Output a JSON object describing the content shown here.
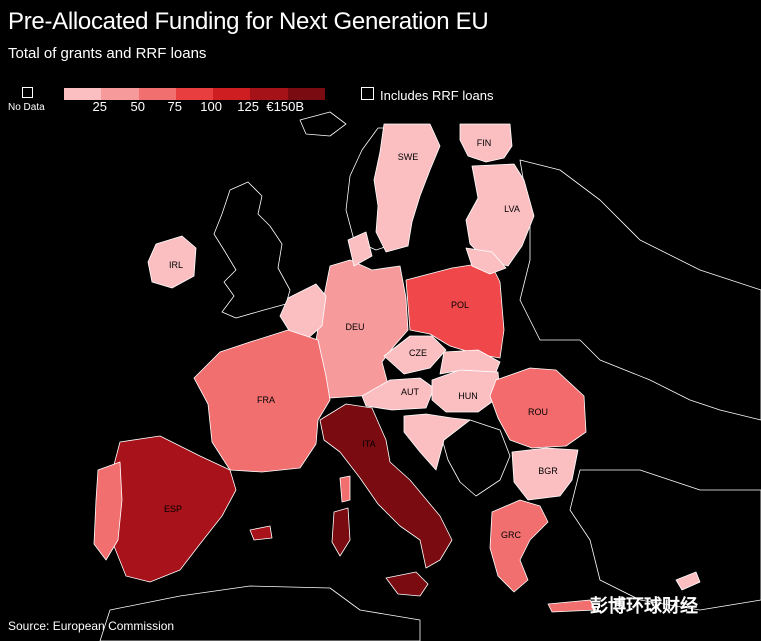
{
  "title": "Pre-Allocated Funding for Next Generation EU",
  "subtitle": "Total of grants and RRF loans",
  "legend": {
    "no_data_label": "No Data",
    "scale_ticks": [
      "25",
      "50",
      "75",
      "100",
      "125",
      "€150B"
    ],
    "scale_colors": [
      "#fbbfc2",
      "#f79a9c",
      "#f26f70",
      "#e83e3f",
      "#cf1e22",
      "#a51218",
      "#7a0b10"
    ],
    "rrf_label": "Includes RRF loans"
  },
  "countries": [
    {
      "code": "SWE",
      "label": "SWE",
      "color": "#fbbfc2"
    },
    {
      "code": "FIN",
      "label": "FIN",
      "color": "#fbbfc2"
    },
    {
      "code": "LVA",
      "label": "LVA",
      "color": "#fbbfc2"
    },
    {
      "code": "IRL",
      "label": "IRL",
      "color": "#fbbfc2"
    },
    {
      "code": "DEU",
      "label": "DEU",
      "color": "#f79a9c"
    },
    {
      "code": "POL",
      "label": "POL",
      "color": "#f0484a"
    },
    {
      "code": "CZE",
      "label": "CZE",
      "color": "#fbbfc2"
    },
    {
      "code": "AUT",
      "label": "AUT",
      "color": "#fbbfc2"
    },
    {
      "code": "HUN",
      "label": "HUN",
      "color": "#fbbfc2"
    },
    {
      "code": "ROU",
      "label": "ROU",
      "color": "#f36b6c"
    },
    {
      "code": "FRA",
      "label": "FRA",
      "color": "#f26f70"
    },
    {
      "code": "ITA",
      "label": "ITA",
      "color": "#7a0b10"
    },
    {
      "code": "BGR",
      "label": "BGR",
      "color": "#fbbfc2"
    },
    {
      "code": "ESP",
      "label": "ESP",
      "color": "#a8121a"
    },
    {
      "code": "GRC",
      "label": "GRC",
      "color": "#f26f70"
    }
  ],
  "source": "Source: European Commission",
  "watermark": "彭博环球财经"
}
